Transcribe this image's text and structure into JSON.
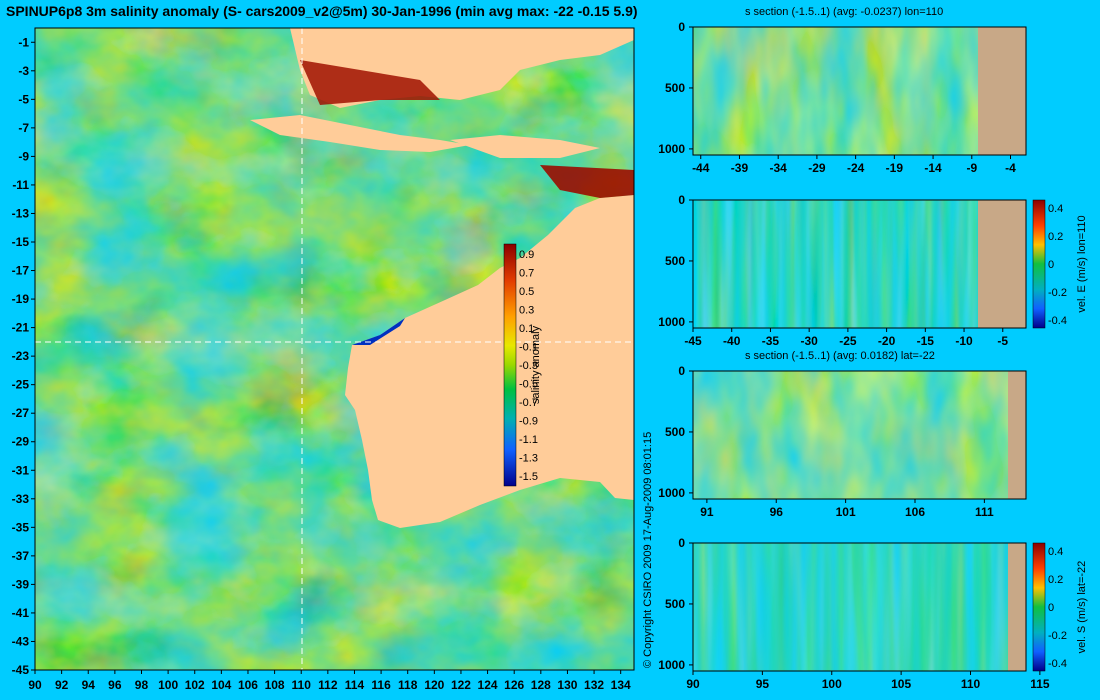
{
  "title": "SPINUP6p8 3m salinity anomaly (S- cars2009_v2@5m) 30-Jan-1996 (min avg max: -22 -0.15 5.9)",
  "copyright": "© Copyright CSIRO 2009   17-Aug-2009 08:01:15",
  "colors": {
    "background": "#00ccff",
    "land_map": "#ffcc99",
    "land_section": "#c8a887",
    "section_line": "#ffffff"
  },
  "chart_data": [
    {
      "type": "heatmap",
      "name": "map",
      "x_ticks": [
        90,
        92,
        94,
        96,
        98,
        100,
        102,
        104,
        106,
        108,
        110,
        112,
        114,
        116,
        118,
        120,
        122,
        124,
        126,
        128,
        130,
        132,
        134
      ],
      "y_ticks": [
        -1,
        -3,
        -5,
        -7,
        -9,
        -11,
        -13,
        -15,
        -17,
        -19,
        -21,
        -23,
        -25,
        -27,
        -29,
        -31,
        -33,
        -35,
        -37,
        -39,
        -41,
        -43,
        -45
      ],
      "xlim": [
        90,
        135
      ],
      "ylim": [
        -45,
        0
      ],
      "section_lon": 110,
      "section_lat": -22,
      "colorbar": {
        "label": "salinity anomaly",
        "ticks": [
          "0.9",
          "0.7",
          "0.5",
          "0.3",
          "0.1",
          "-0.1",
          "-0.3",
          "-0.5",
          "-0.7",
          "-0.9",
          "-1.1",
          "-1.3",
          "-1.5"
        ]
      }
    },
    {
      "type": "heatmap",
      "name": "salinity-section-lon110",
      "title": "s section (-1.5..1) (avg: -0.0237) lon=110",
      "x_ticks": [
        "-44",
        "-39",
        "-34",
        "-29",
        "-24",
        "-19",
        "-14",
        "-9",
        "-4"
      ],
      "y_ticks": [
        "0",
        "500",
        "1000"
      ],
      "xlim": [
        -45,
        -2
      ],
      "ylim": [
        0,
        1050
      ],
      "land_from": -8
    },
    {
      "type": "heatmap",
      "name": "velocity-east-section-lon110",
      "x_ticks": [
        "-45",
        "-40",
        "-35",
        "-30",
        "-25",
        "-20",
        "-15",
        "-10",
        "-5"
      ],
      "y_ticks": [
        "0",
        "500",
        "1000"
      ],
      "xlim": [
        -45,
        -2
      ],
      "ylim": [
        0,
        1050
      ],
      "land_from": -8,
      "colorbar": {
        "label": "vel. E (m/s) lon=110",
        "ticks": [
          "0.4",
          "0.2",
          "0",
          "-0.2",
          "-0.4"
        ]
      }
    },
    {
      "type": "heatmap",
      "name": "salinity-section-lat-22",
      "title": "s section (-1.5..1) (avg: 0.0182) lat=-22",
      "x_ticks": [
        "91",
        "96",
        "101",
        "106",
        "111"
      ],
      "y_ticks": [
        "0",
        "500",
        "1000"
      ],
      "xlim": [
        90,
        114
      ],
      "ylim": [
        0,
        1050
      ],
      "land_from": 113
    },
    {
      "type": "heatmap",
      "name": "velocity-south-section-lat-22",
      "x_ticks": [
        "90",
        "95",
        "100",
        "105",
        "110",
        "115"
      ],
      "y_ticks": [
        "0",
        "500",
        "1000"
      ],
      "xlim": [
        90,
        114
      ],
      "ylim": [
        0,
        1050
      ],
      "land_from": 113.3,
      "colorbar": {
        "label": "vel. S (m/s) lat=-22",
        "ticks": [
          "0.4",
          "0.2",
          "0",
          "-0.2",
          "-0.4"
        ]
      }
    }
  ]
}
